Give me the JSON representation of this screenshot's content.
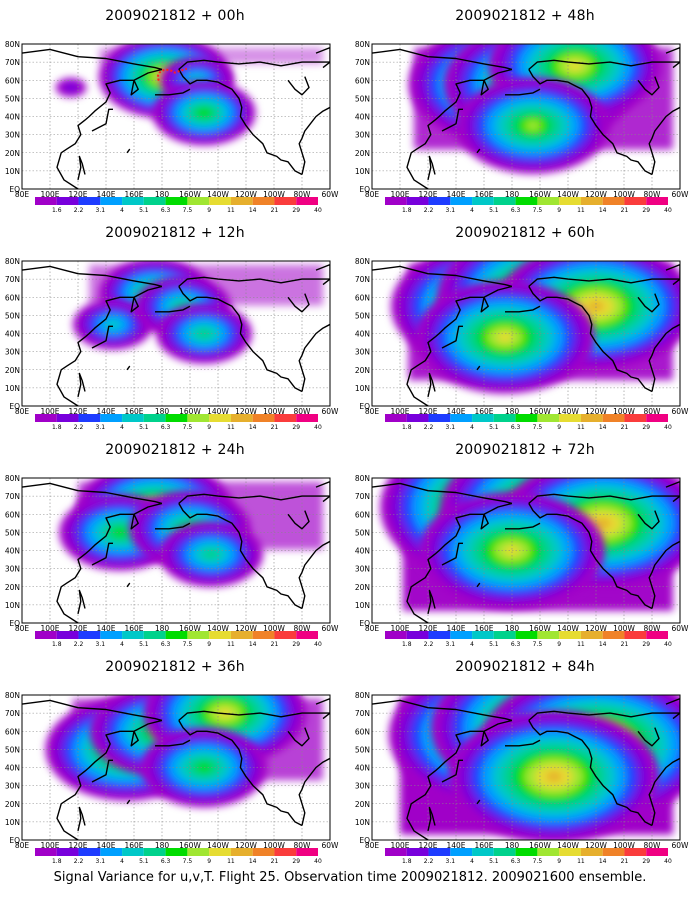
{
  "footer_caption": "Signal Variance for u,v,T. Flight 25. Observation time 2009021812. 2009021600 ensemble.",
  "colorbar": {
    "labels": [
      "1.8",
      "2.2",
      "3.1",
      "4",
      "5.1",
      "6.3",
      "7.5",
      "9",
      "11",
      "14",
      "21",
      "29",
      "40"
    ],
    "labels_first_panel": [
      "1.6",
      "2.2",
      "3.1",
      "4",
      "5.1",
      "6.3",
      "7.5",
      "9",
      "11",
      "14",
      "21",
      "29",
      "40"
    ],
    "colors": [
      "#a000c8",
      "#7800dc",
      "#1e3cff",
      "#00a0ff",
      "#00c8c8",
      "#00d28c",
      "#00dc00",
      "#a0e632",
      "#e6dc32",
      "#e6af2d",
      "#f08228",
      "#fa3c3c",
      "#f00082"
    ]
  },
  "axes": {
    "x_ticks": [
      "80E",
      "100E",
      "120E",
      "140E",
      "160E",
      "180",
      "160W",
      "140W",
      "120W",
      "100W",
      "80W",
      "60W"
    ],
    "y_ticks": [
      "EQ",
      "10N",
      "20N",
      "30N",
      "40N",
      "50N",
      "60N",
      "70N",
      "80N"
    ]
  },
  "chart_data": [
    {
      "type": "heatmap",
      "title": "2009021812 + 00h",
      "intensity": 0.12,
      "xlim": [
        80,
        300
      ],
      "ylim": [
        0,
        80
      ],
      "blobs": [
        {
          "lon": 182,
          "lat": 62,
          "level": 8
        },
        {
          "lon": 205,
          "lat": 60,
          "level": 4
        },
        {
          "lon": 210,
          "lat": 42,
          "level": 6
        },
        {
          "lon": 115,
          "lat": 56,
          "level": 1
        }
      ],
      "annotation": "red dashed loop near 180, 60N"
    },
    {
      "type": "heatmap",
      "title": "2009021812 + 12h",
      "intensity": 0.3,
      "xlim": [
        80,
        300
      ],
      "ylim": [
        0,
        80
      ],
      "blobs": [
        {
          "lon": 175,
          "lat": 62,
          "level": 6
        },
        {
          "lon": 145,
          "lat": 45,
          "level": 4
        },
        {
          "lon": 195,
          "lat": 55,
          "level": 5
        },
        {
          "lon": 210,
          "lat": 40,
          "level": 5
        }
      ]
    },
    {
      "type": "heatmap",
      "title": "2009021812 + 24h",
      "intensity": 0.5,
      "xlim": [
        80,
        300
      ],
      "ylim": [
        0,
        80
      ],
      "blobs": [
        {
          "lon": 175,
          "lat": 62,
          "level": 8
        },
        {
          "lon": 150,
          "lat": 50,
          "level": 6
        },
        {
          "lon": 200,
          "lat": 52,
          "level": 6
        },
        {
          "lon": 215,
          "lat": 38,
          "level": 5
        }
      ]
    },
    {
      "type": "heatmap",
      "title": "2009021812 + 36h",
      "intensity": 0.6,
      "xlim": [
        80,
        300
      ],
      "ylim": [
        0,
        80
      ],
      "blobs": [
        {
          "lon": 155,
          "lat": 50,
          "level": 8
        },
        {
          "lon": 180,
          "lat": 60,
          "level": 7
        },
        {
          "lon": 225,
          "lat": 70,
          "level": 8
        },
        {
          "lon": 210,
          "lat": 40,
          "level": 6
        }
      ]
    },
    {
      "type": "heatmap",
      "title": "2009021812 + 48h",
      "intensity": 0.75,
      "xlim": [
        80,
        300
      ],
      "ylim": [
        0,
        80
      ],
      "blobs": [
        {
          "lon": 175,
          "lat": 58,
          "level": 9
        },
        {
          "lon": 200,
          "lat": 58,
          "level": 9
        },
        {
          "lon": 225,
          "lat": 68,
          "level": 8
        },
        {
          "lon": 195,
          "lat": 35,
          "level": 7
        }
      ]
    },
    {
      "type": "heatmap",
      "title": "2009021812 + 60h",
      "intensity": 0.85,
      "xlim": [
        80,
        300
      ],
      "ylim": [
        0,
        80
      ],
      "blobs": [
        {
          "lon": 165,
          "lat": 55,
          "level": 9
        },
        {
          "lon": 205,
          "lat": 60,
          "level": 10
        },
        {
          "lon": 240,
          "lat": 55,
          "level": 9
        },
        {
          "lon": 175,
          "lat": 38,
          "level": 8
        }
      ]
    },
    {
      "type": "heatmap",
      "title": "2009021812 + 72h",
      "intensity": 0.95,
      "xlim": [
        80,
        300
      ],
      "ylim": [
        0,
        80
      ],
      "blobs": [
        {
          "lon": 175,
          "lat": 64,
          "level": 11
        },
        {
          "lon": 210,
          "lat": 62,
          "level": 10
        },
        {
          "lon": 245,
          "lat": 55,
          "level": 9
        },
        {
          "lon": 180,
          "lat": 40,
          "level": 8
        }
      ]
    },
    {
      "type": "heatmap",
      "title": "2009021812 + 84h",
      "intensity": 1.0,
      "xlim": [
        80,
        300
      ],
      "ylim": [
        0,
        80
      ],
      "blobs": [
        {
          "lon": 175,
          "lat": 58,
          "level": 10
        },
        {
          "lon": 205,
          "lat": 62,
          "level": 10
        },
        {
          "lon": 240,
          "lat": 52,
          "level": 10
        },
        {
          "lon": 210,
          "lat": 35,
          "level": 9
        }
      ]
    }
  ]
}
